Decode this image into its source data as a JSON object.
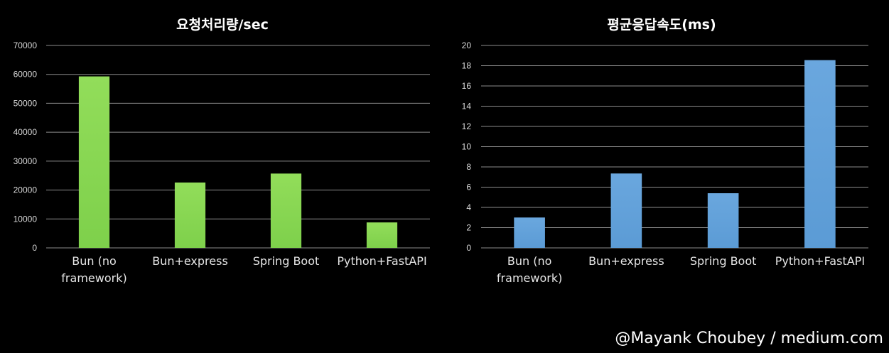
{
  "chart_data": [
    {
      "type": "bar",
      "title": "요청처리량/sec",
      "categories": [
        "Bun (no framework)",
        "Bun+express",
        "Spring Boot",
        "Python+FastAPI"
      ],
      "category_lines": [
        [
          "Bun (no",
          "framework)"
        ],
        [
          "Bun+express"
        ],
        [
          "Spring Boot"
        ],
        [
          "Python+FastAPI"
        ]
      ],
      "values": [
        59300,
        22600,
        25700,
        8800
      ],
      "ylim": [
        0,
        70000
      ],
      "yticks": [
        0,
        10000,
        20000,
        30000,
        40000,
        50000,
        60000,
        70000
      ],
      "grid": true,
      "color": "#7ed04b",
      "color_light": "#92dd5a"
    },
    {
      "type": "bar",
      "title": "평균응답속도(ms)",
      "categories": [
        "Bun (no framework)",
        "Bun+express",
        "Spring Boot",
        "Python+FastAPI"
      ],
      "category_lines": [
        [
          "Bun (no",
          "framework)"
        ],
        [
          "Bun+express"
        ],
        [
          "Spring Boot"
        ],
        [
          "Python+FastAPI"
        ]
      ],
      "values": [
        3.0,
        7.35,
        5.4,
        18.55
      ],
      "ylim": [
        0,
        20
      ],
      "yticks": [
        0,
        2,
        4,
        6,
        8,
        10,
        12,
        14,
        16,
        18,
        20
      ],
      "grid": true,
      "color": "#5b9bd5",
      "color_light": "#6aa7de"
    }
  ],
  "credit": "@Mayank Choubey / medium.com"
}
